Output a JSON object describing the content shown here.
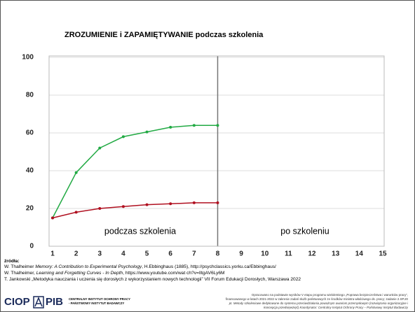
{
  "chart_data": {
    "type": "line",
    "title": "ZROZUMIENIE i ZAPAMIĘTYWANIE podczas szkolenia",
    "x": [
      1,
      2,
      3,
      4,
      5,
      6,
      7,
      8
    ],
    "series": [
      {
        "color": "#22aa44",
        "values": [
          15,
          39,
          52,
          58,
          60.5,
          63,
          64,
          64
        ]
      },
      {
        "color": "#b01020",
        "values": [
          15,
          18,
          20,
          21,
          22,
          22.5,
          23,
          23
        ]
      }
    ],
    "xlim": [
      1,
      15
    ],
    "xticks": [
      1,
      2,
      3,
      4,
      5,
      6,
      7,
      8,
      9,
      10,
      11,
      12,
      13,
      14,
      15
    ],
    "ylim": [
      0,
      100
    ],
    "yticks": [
      0,
      20,
      40,
      60,
      80,
      100
    ],
    "grid": true,
    "vline": 8,
    "annotations": [
      "podczas szkolenia",
      "po szkoleniu"
    ]
  },
  "sources": {
    "heading": "źródła:",
    "lines": [
      [
        "W. Thalheimer ",
        "Memory: A Contribution to Experimental Psychology",
        ", H.Ebbinghaus (1885), http://psychclassics.yorku.ca/Ebbinghaus/"
      ],
      [
        "W. Thalheimer, ",
        "Learning and Forgetting Curves - In Depth",
        ", https://www.youtube.com/wat ch?v=lItgAV6Ly6M"
      ],
      [
        "T. Jankowski „Metodyka nauczania i uczenia się dorosłych z wykorzystaniem nowych technologii” VII Forum Edukacji Dorosłych, Warszawa 2022"
      ]
    ]
  },
  "footer": {
    "logo": [
      "CIOP",
      "PIB"
    ],
    "institute": [
      "CENTRALNY INSTYTUT OCHRONY PRACY",
      "- PAŃSTWOWY INSTYTUT BADAWCZY"
    ],
    "note": [
      "Opracowano na podstawie wyników V etapu programu wieloletniego „Poprawa bezpieczeństwa i warunków pracy”,",
      "finansowanego w latach 2021-2022 w zakresie zadań służb państwowych ze środków ministra właściwego ds. pracy; zadanie 2.SP.20",
      "pt. Metody szkoleniowe dedykowane do systemu przeciwdziałania poważnym awariom przemysłowym (rozwiązania organizacyjne i",
      "koncepcja przedsięwzięć) Koordynator: Centralny Instytut Ochrony Pracy – Państwowy Instytut Badawczy"
    ]
  }
}
